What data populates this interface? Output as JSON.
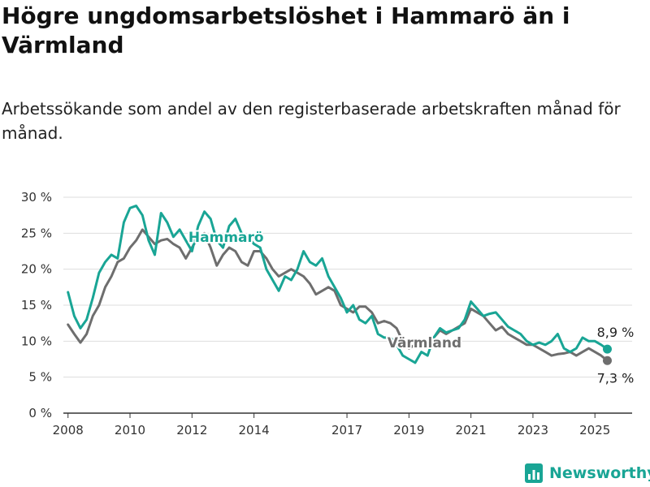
{
  "title": "Högre ungdomsarbetslöshet i Hammarö än i Värmland",
  "subtitle": "Arbetssökande som andel av den registerbaserade arbetskraften månad för månad.",
  "brand": "Newsworthy",
  "colors": {
    "hammaro": "#19a595",
    "varmland": "#6e6e6e",
    "grid": "#dddddd",
    "axis": "#333333"
  },
  "chart_data": {
    "type": "line",
    "title": "Högre ungdomsarbetslöshet i Hammarö än i Värmland",
    "subtitle": "Arbetssökande som andel av den registerbaserade arbetskraften månad för månad.",
    "xlabel": "",
    "ylabel": "",
    "x_ticks": [
      "2008",
      "2010",
      "2012",
      "2014",
      "2017",
      "2019",
      "2021",
      "2023",
      "2025"
    ],
    "y_ticks": [
      "0 %",
      "5 %",
      "10 %",
      "15 %",
      "20 %",
      "25 %",
      "30 %"
    ],
    "xlim": [
      2007.85,
      2026.2
    ],
    "ylim": [
      0,
      30
    ],
    "grid": true,
    "series": [
      {
        "name": "Hammarö",
        "end_label": "8,9 %",
        "points": [
          [
            2008.0,
            16.8
          ],
          [
            2008.2,
            13.5
          ],
          [
            2008.4,
            11.8
          ],
          [
            2008.6,
            13.0
          ],
          [
            2008.8,
            16.0
          ],
          [
            2009.0,
            19.5
          ],
          [
            2009.2,
            21.0
          ],
          [
            2009.4,
            22.0
          ],
          [
            2009.6,
            21.5
          ],
          [
            2009.8,
            26.5
          ],
          [
            2010.0,
            28.5
          ],
          [
            2010.2,
            28.8
          ],
          [
            2010.4,
            27.5
          ],
          [
            2010.6,
            24.0
          ],
          [
            2010.8,
            22.0
          ],
          [
            2011.0,
            27.8
          ],
          [
            2011.2,
            26.5
          ],
          [
            2011.4,
            24.5
          ],
          [
            2011.6,
            25.5
          ],
          [
            2011.8,
            24.0
          ],
          [
            2012.0,
            22.5
          ],
          [
            2012.2,
            26.0
          ],
          [
            2012.4,
            28.0
          ],
          [
            2012.6,
            27.0
          ],
          [
            2012.8,
            24.0
          ],
          [
            2013.0,
            23.0
          ],
          [
            2013.2,
            26.0
          ],
          [
            2013.4,
            27.0
          ],
          [
            2013.6,
            25.0
          ],
          [
            2013.8,
            24.5
          ],
          [
            2014.0,
            23.5
          ],
          [
            2014.2,
            23.0
          ],
          [
            2014.4,
            20.0
          ],
          [
            2014.6,
            18.5
          ],
          [
            2014.8,
            17.0
          ],
          [
            2015.0,
            19.0
          ],
          [
            2015.2,
            18.5
          ],
          [
            2015.4,
            20.0
          ],
          [
            2015.6,
            22.5
          ],
          [
            2015.8,
            21.0
          ],
          [
            2016.0,
            20.5
          ],
          [
            2016.2,
            21.5
          ],
          [
            2016.4,
            19.0
          ],
          [
            2016.6,
            17.5
          ],
          [
            2016.8,
            16.0
          ],
          [
            2017.0,
            14.0
          ],
          [
            2017.2,
            15.0
          ],
          [
            2017.4,
            13.0
          ],
          [
            2017.6,
            12.5
          ],
          [
            2017.8,
            13.5
          ],
          [
            2018.0,
            11.0
          ],
          [
            2018.2,
            10.5
          ],
          [
            2018.4,
            10.5
          ],
          [
            2018.6,
            9.5
          ],
          [
            2018.8,
            8.0
          ],
          [
            2019.0,
            7.5
          ],
          [
            2019.2,
            7.0
          ],
          [
            2019.4,
            8.5
          ],
          [
            2019.6,
            8.0
          ],
          [
            2019.8,
            10.5
          ],
          [
            2020.0,
            11.8
          ],
          [
            2020.2,
            11.2
          ],
          [
            2020.4,
            11.5
          ],
          [
            2020.6,
            11.8
          ],
          [
            2020.8,
            13.0
          ],
          [
            2021.0,
            15.5
          ],
          [
            2021.2,
            14.5
          ],
          [
            2021.4,
            13.5
          ],
          [
            2021.6,
            13.8
          ],
          [
            2021.8,
            14.0
          ],
          [
            2022.0,
            13.0
          ],
          [
            2022.2,
            12.0
          ],
          [
            2022.4,
            11.5
          ],
          [
            2022.6,
            11.0
          ],
          [
            2022.8,
            10.0
          ],
          [
            2023.0,
            9.5
          ],
          [
            2023.2,
            9.8
          ],
          [
            2023.4,
            9.5
          ],
          [
            2023.6,
            10.0
          ],
          [
            2023.8,
            11.0
          ],
          [
            2024.0,
            9.0
          ],
          [
            2024.2,
            8.5
          ],
          [
            2024.4,
            9.0
          ],
          [
            2024.6,
            10.5
          ],
          [
            2024.8,
            10.0
          ],
          [
            2025.0,
            10.0
          ],
          [
            2025.2,
            9.5
          ],
          [
            2025.4,
            8.9
          ]
        ]
      },
      {
        "name": "Värmland",
        "end_label": "7,3 %",
        "points": [
          [
            2008.0,
            12.3
          ],
          [
            2008.2,
            11.0
          ],
          [
            2008.4,
            9.8
          ],
          [
            2008.6,
            11.0
          ],
          [
            2008.8,
            13.5
          ],
          [
            2009.0,
            15.0
          ],
          [
            2009.2,
            17.5
          ],
          [
            2009.4,
            19.0
          ],
          [
            2009.6,
            21.0
          ],
          [
            2009.8,
            21.5
          ],
          [
            2010.0,
            23.0
          ],
          [
            2010.2,
            24.0
          ],
          [
            2010.4,
            25.5
          ],
          [
            2010.6,
            24.5
          ],
          [
            2010.8,
            23.5
          ],
          [
            2011.0,
            24.0
          ],
          [
            2011.2,
            24.2
          ],
          [
            2011.4,
            23.5
          ],
          [
            2011.6,
            23.0
          ],
          [
            2011.8,
            21.5
          ],
          [
            2012.0,
            23.0
          ],
          [
            2012.2,
            24.5
          ],
          [
            2012.4,
            25.0
          ],
          [
            2012.6,
            23.0
          ],
          [
            2012.8,
            20.5
          ],
          [
            2013.0,
            22.0
          ],
          [
            2013.2,
            23.0
          ],
          [
            2013.4,
            22.5
          ],
          [
            2013.6,
            21.0
          ],
          [
            2013.8,
            20.5
          ],
          [
            2014.0,
            22.5
          ],
          [
            2014.2,
            22.5
          ],
          [
            2014.4,
            21.5
          ],
          [
            2014.6,
            20.0
          ],
          [
            2014.8,
            19.0
          ],
          [
            2015.0,
            19.5
          ],
          [
            2015.2,
            20.0
          ],
          [
            2015.4,
            19.5
          ],
          [
            2015.6,
            19.0
          ],
          [
            2015.8,
            18.0
          ],
          [
            2016.0,
            16.5
          ],
          [
            2016.2,
            17.0
          ],
          [
            2016.4,
            17.5
          ],
          [
            2016.6,
            17.0
          ],
          [
            2016.8,
            15.0
          ],
          [
            2017.0,
            14.5
          ],
          [
            2017.2,
            14.0
          ],
          [
            2017.4,
            14.8
          ],
          [
            2017.6,
            14.8
          ],
          [
            2017.8,
            14.0
          ],
          [
            2018.0,
            12.5
          ],
          [
            2018.2,
            12.8
          ],
          [
            2018.4,
            12.5
          ],
          [
            2018.6,
            11.8
          ],
          [
            2018.8,
            10.0
          ],
          [
            2019.0,
            9.0
          ],
          [
            2019.2,
            9.5
          ],
          [
            2019.4,
            9.8
          ],
          [
            2019.6,
            10.0
          ],
          [
            2019.8,
            10.5
          ],
          [
            2020.0,
            11.5
          ],
          [
            2020.2,
            11.0
          ],
          [
            2020.4,
            11.5
          ],
          [
            2020.6,
            12.0
          ],
          [
            2020.8,
            12.5
          ],
          [
            2021.0,
            14.5
          ],
          [
            2021.2,
            14.0
          ],
          [
            2021.4,
            13.5
          ],
          [
            2021.6,
            12.5
          ],
          [
            2021.8,
            11.5
          ],
          [
            2022.0,
            12.0
          ],
          [
            2022.2,
            11.0
          ],
          [
            2022.4,
            10.5
          ],
          [
            2022.6,
            10.0
          ],
          [
            2022.8,
            9.5
          ],
          [
            2023.0,
            9.5
          ],
          [
            2023.2,
            9.0
          ],
          [
            2023.4,
            8.5
          ],
          [
            2023.6,
            8.0
          ],
          [
            2023.8,
            8.2
          ],
          [
            2024.0,
            8.3
          ],
          [
            2024.2,
            8.5
          ],
          [
            2024.4,
            8.0
          ],
          [
            2024.6,
            8.5
          ],
          [
            2024.8,
            9.0
          ],
          [
            2025.0,
            8.5
          ],
          [
            2025.2,
            8.0
          ],
          [
            2025.4,
            7.3
          ]
        ]
      }
    ],
    "annotations": [
      {
        "text": "Hammarö",
        "series": "Hammarö",
        "x": 2013.1,
        "y": 24.5
      },
      {
        "text": "Värmland",
        "series": "Värmland",
        "x": 2019.5,
        "y": 9.8
      }
    ]
  }
}
